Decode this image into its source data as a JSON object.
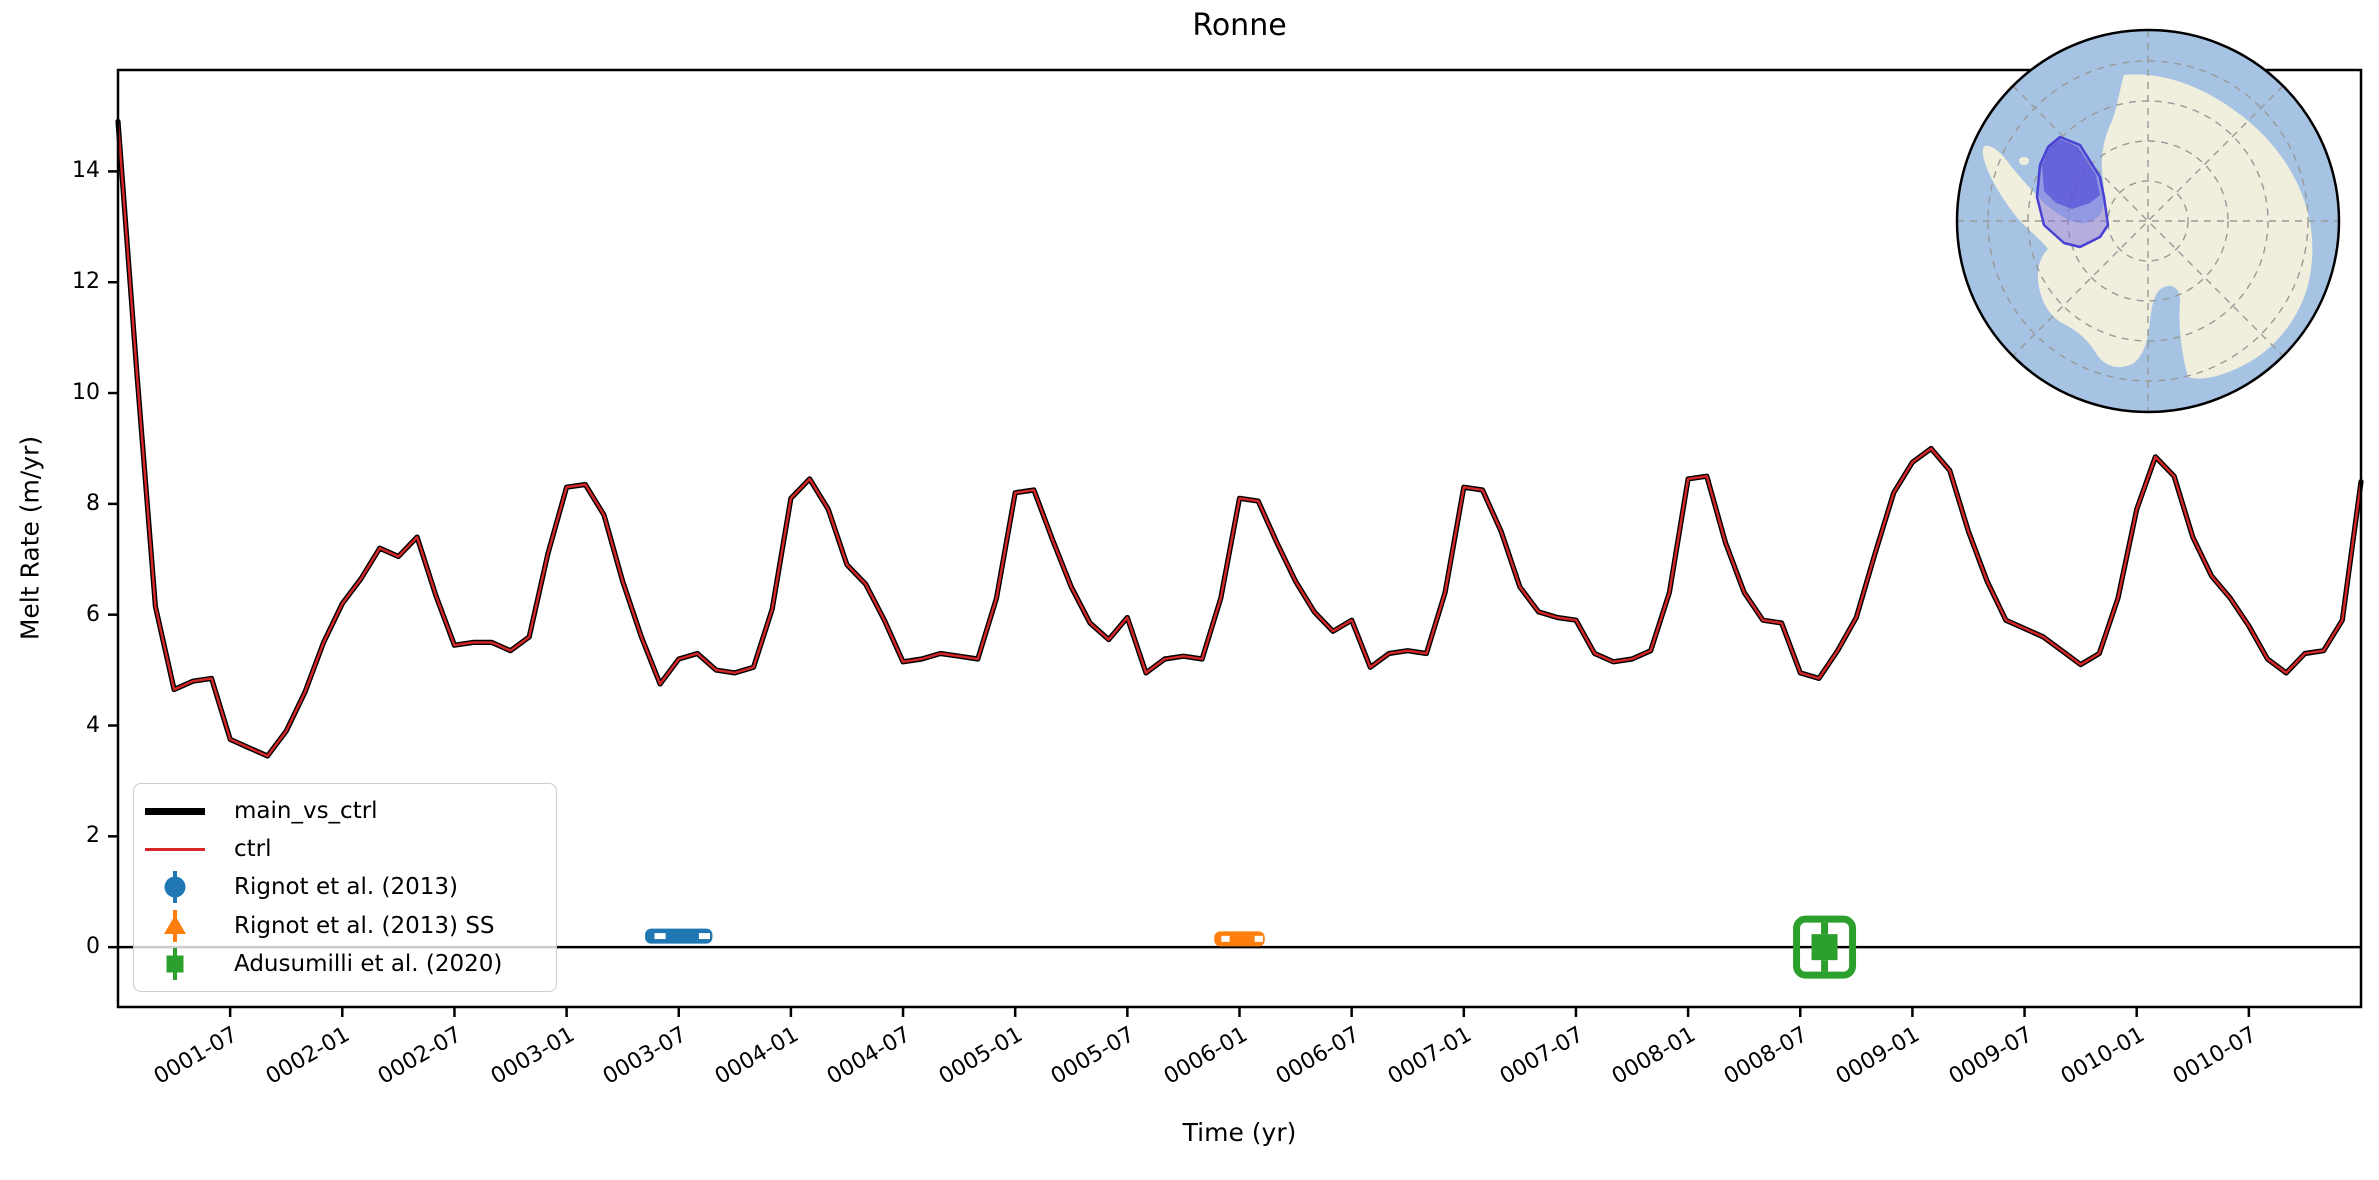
{
  "title": "Ronne",
  "axes": {
    "xlabel": "Time (yr)",
    "ylabel": "Melt Rate (m/yr)",
    "x_tick_labels": [
      "0001-07",
      "0002-01",
      "0002-07",
      "0003-01",
      "0003-07",
      "0004-01",
      "0004-07",
      "0005-01",
      "0005-07",
      "0006-01",
      "0006-07",
      "0007-01",
      "0007-07",
      "0008-01",
      "0008-07",
      "0009-01",
      "0009-07",
      "0010-01",
      "0010-07"
    ],
    "y_tick_labels": [
      "0",
      "2",
      "4",
      "6",
      "8",
      "10",
      "12",
      "14"
    ]
  },
  "legend": {
    "entries": [
      {
        "label": "main_vs_ctrl",
        "color": "#000000",
        "marker": "thick-line"
      },
      {
        "label": "ctrl",
        "color": "#d62728",
        "marker": "thin-line"
      },
      {
        "label": "Rignot et al. (2013)",
        "color": "#1f77b4",
        "marker": "circle-errorbar"
      },
      {
        "label": "Rignot et al. (2013) SS",
        "color": "#ff7f0e",
        "marker": "triangle-errorbar"
      },
      {
        "label": "Adusumilli et al. (2020)",
        "color": "#2ca02c",
        "marker": "square-errorbar"
      }
    ]
  },
  "chart_data": {
    "type": "line",
    "title": "Ronne",
    "xlabel": "Time (yr)",
    "ylabel": "Melt Rate (m/yr)",
    "x_start": "0001-01",
    "x_step_months": 1,
    "x_end": "0011-01",
    "xlim": [
      0,
      120
    ],
    "ylim": [
      -1.08,
      15.83
    ],
    "grid": false,
    "zero_line": true,
    "legend_position": "lower left",
    "x_tick_month_indices": [
      6,
      12,
      18,
      24,
      30,
      36,
      42,
      48,
      54,
      60,
      66,
      72,
      78,
      84,
      90,
      96,
      102,
      108,
      114
    ],
    "x_tick_labels": [
      "0001-07",
      "0002-01",
      "0002-07",
      "0003-01",
      "0003-07",
      "0004-01",
      "0004-07",
      "0005-01",
      "0005-07",
      "0006-01",
      "0006-07",
      "0007-01",
      "0007-07",
      "0008-01",
      "0008-07",
      "0009-01",
      "0009-07",
      "0010-01",
      "0010-07"
    ],
    "y_tick_values": [
      0,
      2,
      4,
      6,
      8,
      10,
      12,
      14
    ],
    "y_tick_labels": [
      "0",
      "2",
      "4",
      "6",
      "8",
      "10",
      "12",
      "14"
    ],
    "values": [
      14.9,
      10.4,
      6.15,
      4.65,
      4.8,
      4.85,
      3.75,
      3.6,
      3.45,
      3.9,
      4.6,
      5.5,
      6.2,
      6.65,
      7.2,
      7.05,
      7.4,
      6.35,
      5.45,
      5.5,
      5.5,
      5.35,
      5.6,
      7.1,
      8.3,
      8.35,
      7.8,
      6.6,
      5.6,
      4.75,
      5.2,
      5.3,
      5.0,
      4.95,
      5.05,
      6.1,
      8.1,
      8.45,
      7.9,
      6.9,
      6.55,
      5.9,
      5.15,
      5.2,
      5.3,
      5.25,
      5.2,
      6.3,
      8.2,
      8.25,
      7.35,
      6.5,
      5.85,
      5.55,
      5.95,
      4.95,
      5.2,
      5.25,
      5.2,
      6.3,
      8.1,
      8.05,
      7.3,
      6.6,
      6.05,
      5.7,
      5.9,
      5.05,
      5.3,
      5.35,
      5.3,
      6.4,
      8.3,
      8.25,
      7.5,
      6.5,
      6.05,
      5.95,
      5.9,
      5.3,
      5.15,
      5.2,
      5.35,
      6.4,
      8.45,
      8.5,
      7.3,
      6.4,
      5.9,
      5.85,
      4.95,
      4.85,
      5.35,
      5.95,
      7.1,
      8.2,
      8.75,
      9.0,
      8.6,
      7.5,
      6.6,
      5.9,
      5.75,
      5.6,
      5.35,
      5.1,
      5.3,
      6.3,
      7.9,
      8.85,
      8.5,
      7.4,
      6.7,
      6.3,
      5.8,
      5.2,
      4.95,
      5.3,
      5.35,
      5.9,
      8.4
    ],
    "series": [
      {
        "name": "main_vs_ctrl",
        "color": "#000000",
        "linewidth": 5.2,
        "uses": "values"
      },
      {
        "name": "ctrl",
        "color": "#d62728",
        "linewidth": 2.4,
        "uses": "values"
      }
    ],
    "observations": [
      {
        "label": "Rignot et al. (2013)",
        "color": "#1f77b4",
        "marker": "circle",
        "x": "0003-07",
        "x_month_index": 30,
        "x_halfwidth_months": 1.8,
        "value": 0.2,
        "style": "thick-dashed-xerr-bar"
      },
      {
        "label": "Rignot et al. (2013) SS",
        "color": "#ff7f0e",
        "marker": "triangle-up",
        "x": "0006-01",
        "x_month_index": 60,
        "x_halfwidth_months": 1.35,
        "value": 0.15,
        "style": "thick-dashed-xerr-bar"
      },
      {
        "label": "Adusumilli et al. (2020)",
        "color": "#2ca02c",
        "marker": "square",
        "x": "0008-08",
        "x_month_index": 91.3,
        "x_halfwidth_months": 1.5,
        "value": 0.0,
        "yerr": 0.5,
        "style": "boxed-square-with-yerr"
      }
    ]
  },
  "inset_map": {
    "name": "antarctica-polar-inset",
    "highlight_name": "ronne-region",
    "ocean_color": "#a6c3e4",
    "land_color": "#f0eedc",
    "graticule_color": "#999999",
    "region_fill": "rgba(123,112,224,0.5)",
    "region_inner_fill": "rgba(76,66,214,0.62)",
    "region_edge": "#4940d4",
    "circle_edge": "#000000"
  },
  "colors": {
    "main_line": "#000000",
    "ctrl_line": "#d62728",
    "obs1": "#1f77b4",
    "obs2": "#ff7f0e",
    "obs3": "#2ca02c",
    "frame": "#000000"
  }
}
